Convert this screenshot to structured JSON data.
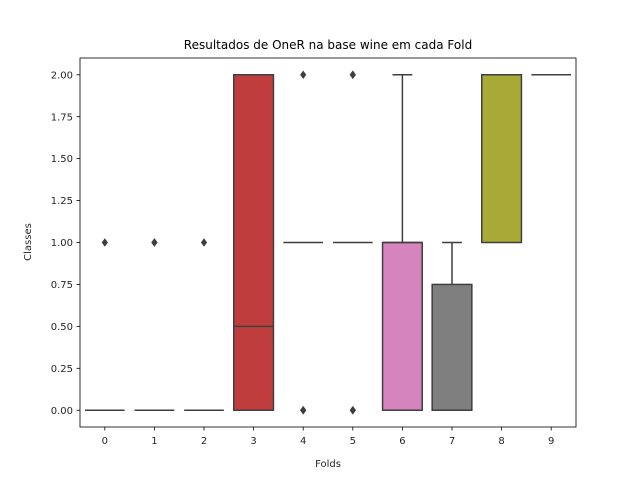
{
  "chart_data": {
    "type": "box",
    "title": "Resultados de OneR na base wine em cada Fold",
    "xlabel": "Folds",
    "ylabel": "Classes",
    "ylim": [
      -0.1,
      2.1
    ],
    "yticks": [
      "0.00",
      "0.25",
      "0.50",
      "0.75",
      "1.00",
      "1.25",
      "1.50",
      "1.75",
      "2.00"
    ],
    "ytick_values": [
      0,
      0.25,
      0.5,
      0.75,
      1.0,
      1.25,
      1.5,
      1.75,
      2.0
    ],
    "categories": [
      "0",
      "1",
      "2",
      "3",
      "4",
      "5",
      "6",
      "7",
      "8",
      "9"
    ],
    "boxes": [
      {
        "category": "0",
        "q1": 0,
        "median": 0,
        "q3": 0,
        "whisker_low": 0,
        "whisker_high": 0,
        "outliers": [
          1
        ],
        "color": "#3274a1"
      },
      {
        "category": "1",
        "q1": 0,
        "median": 0,
        "q3": 0,
        "whisker_low": 0,
        "whisker_high": 0,
        "outliers": [
          1,
          1
        ],
        "color": "#e1812c"
      },
      {
        "category": "2",
        "q1": 0,
        "median": 0,
        "q3": 0,
        "whisker_low": 0,
        "whisker_high": 0,
        "outliers": [
          1
        ],
        "color": "#3a923a"
      },
      {
        "category": "3",
        "q1": 0,
        "median": 0.5,
        "q3": 2,
        "whisker_low": 0,
        "whisker_high": 2,
        "outliers": [],
        "color": "#c03d3e"
      },
      {
        "category": "4",
        "q1": 1,
        "median": 1,
        "q3": 1,
        "whisker_low": 1,
        "whisker_high": 1,
        "outliers": [
          2,
          0,
          0
        ],
        "color": "#9372b2"
      },
      {
        "category": "5",
        "q1": 1,
        "median": 1,
        "q3": 1,
        "whisker_low": 1,
        "whisker_high": 1,
        "outliers": [
          2,
          2,
          0,
          0
        ],
        "color": "#845b53"
      },
      {
        "category": "6",
        "q1": 0,
        "median": 1,
        "q3": 1,
        "whisker_low": 0,
        "whisker_high": 2,
        "outliers": [],
        "color": "#d684bd"
      },
      {
        "category": "7",
        "q1": 0,
        "median": 0,
        "q3": 0.75,
        "whisker_low": 0,
        "whisker_high": 1,
        "outliers": [],
        "color": "#7f7f7f"
      },
      {
        "category": "8",
        "q1": 1,
        "median": 2,
        "q3": 2,
        "whisker_low": 1,
        "whisker_high": 2,
        "outliers": [],
        "color": "#a9aa35"
      },
      {
        "category": "9",
        "q1": 2,
        "median": 2,
        "q3": 2,
        "whisker_low": 2,
        "whisker_high": 2,
        "outliers": [],
        "color": "#2ea0b3"
      }
    ],
    "line_color": "#3f3f3f",
    "grid": false,
    "legend": "none"
  }
}
